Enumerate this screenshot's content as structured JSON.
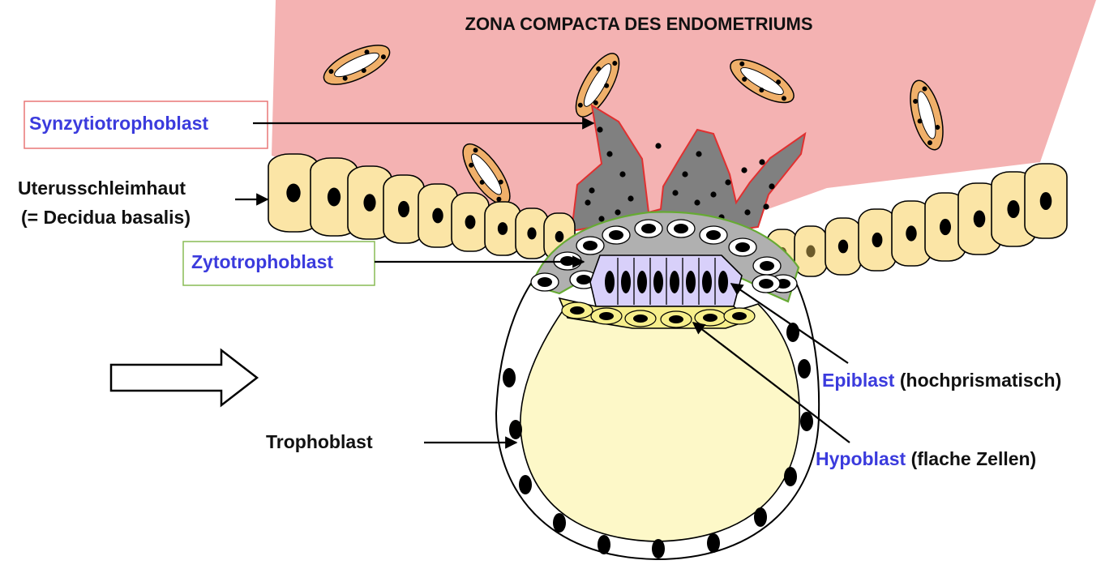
{
  "title": "ZONA COMPACTA DES ENDOMETRIUMS",
  "labels": {
    "synzytio": "Synzytiotrophoblast",
    "uterus_line1": "Uterusschleimhaut",
    "uterus_line2": "(= Decidua basalis)",
    "zyto": "Zytotrophoblast",
    "trophoblast": "Trophoblast",
    "epiblast": "Epiblast",
    "epiblast_note": " (hochprismatisch)",
    "hypoblast": "Hypoblast",
    "hypoblast_note": " (flache Zellen)"
  },
  "colors": {
    "endometrium": "#f4b2b2",
    "epithelium": "#fbe5a6",
    "syncytium": "#808080",
    "syncytium_border": "#e03030",
    "cytotrophoblast": "#b0b0b0",
    "cytotrophoblast_border": "#66aa33",
    "epiblast": "#d8d0fa",
    "hypoblast": "#f7ef8c",
    "blastocoel": "#fdf8c8",
    "stromal_cell": "#f0b06a",
    "label_blue": "#3b3bdd"
  },
  "icons": [
    "right-arrow-outline-icon"
  ]
}
